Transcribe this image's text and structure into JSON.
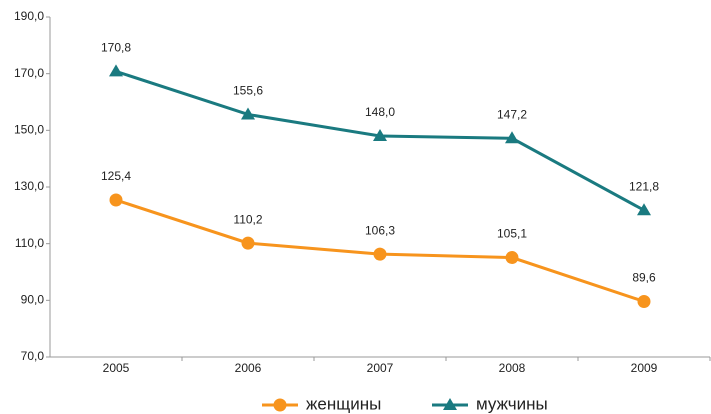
{
  "chart_data": {
    "type": "line",
    "categories": [
      "2005",
      "2006",
      "2007",
      "2008",
      "2009"
    ],
    "series": [
      {
        "name": "женщины",
        "color": "#f7941d",
        "marker": "circle",
        "values": [
          125.4,
          110.2,
          106.3,
          105.1,
          89.6
        ],
        "value_labels": [
          "125,4",
          "110,2",
          "106,3",
          "105,1",
          "89,6"
        ]
      },
      {
        "name": "мужчины",
        "color": "#1a7a80",
        "marker": "triangle",
        "values": [
          170.8,
          155.6,
          148.0,
          147.2,
          121.8
        ],
        "value_labels": [
          "170,8",
          "155,6",
          "148,0",
          "147,2",
          "121,8"
        ]
      }
    ],
    "ylim": [
      70,
      190
    ],
    "yticks": [
      {
        "value": 70,
        "label": "70,0"
      },
      {
        "value": 90,
        "label": "90,0"
      },
      {
        "value": 110,
        "label": "110,0"
      },
      {
        "value": 130,
        "label": "130,0"
      },
      {
        "value": 150,
        "label": "150,0"
      },
      {
        "value": 170,
        "label": "170,0"
      },
      {
        "value": 190,
        "label": "190,0"
      }
    ],
    "grid": false,
    "legend": "bottom"
  }
}
